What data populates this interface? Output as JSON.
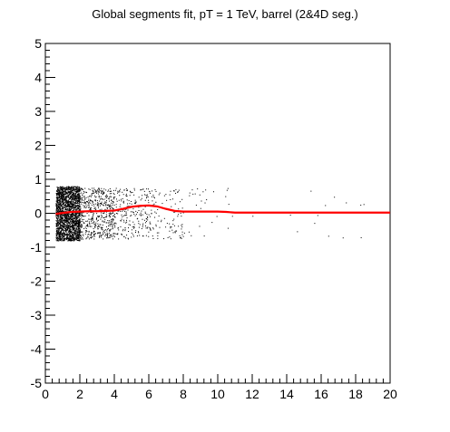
{
  "chart_data": {
    "type": "scatter",
    "title": "Global segments fit, pT = 1 TeV, barrel (2&4D seg.)",
    "xlabel": "",
    "ylabel": "",
    "xlim": [
      0,
      20
    ],
    "ylim": [
      -5,
      5
    ],
    "x_ticks": [
      0,
      2,
      4,
      6,
      8,
      10,
      12,
      14,
      16,
      18,
      20
    ],
    "y_ticks": [
      -5,
      -4,
      -3,
      -2,
      -1,
      0,
      1,
      2,
      3,
      4,
      5
    ],
    "grid": false,
    "legend": "none",
    "series": [
      {
        "kind": "scatter",
        "color": "#000000",
        "description_points": "dense band of black points between x≈0.6 and x≈2.0 spanning y≈-0.8 to 0.8, thinning out to sparse points up to x≈19",
        "density_bands": [
          {
            "x": [
              0.6,
              2.0
            ],
            "y": [
              -0.8,
              0.8
            ],
            "count": 2200
          },
          {
            "x": [
              2.0,
              4.0
            ],
            "y": [
              -0.75,
              0.75
            ],
            "count": 520
          },
          {
            "x": [
              4.0,
              6.0
            ],
            "y": [
              -0.75,
              0.75
            ],
            "count": 220
          },
          {
            "x": [
              6.0,
              8.0
            ],
            "y": [
              -0.75,
              0.75
            ],
            "count": 110
          },
          {
            "x": [
              8.0,
              11.0
            ],
            "y": [
              -0.75,
              0.75
            ],
            "count": 28
          },
          {
            "x": [
              11.0,
              19.0
            ],
            "y": [
              -0.75,
              0.75
            ],
            "count": 14
          }
        ]
      },
      {
        "kind": "line",
        "color": "#ff0000",
        "x": [
          0.6,
          1.0,
          1.5,
          2.0,
          2.5,
          3.0,
          3.5,
          4.0,
          4.5,
          5.0,
          5.5,
          6.0,
          6.5,
          7.0,
          7.5,
          8.0,
          9.0,
          10.0,
          10.5,
          11.0,
          12.0,
          14.0,
          16.0,
          18.0,
          20.0
        ],
        "y": [
          -0.02,
          0.01,
          0.04,
          0.05,
          0.06,
          0.06,
          0.07,
          0.08,
          0.13,
          0.19,
          0.22,
          0.23,
          0.2,
          0.13,
          0.07,
          0.05,
          0.05,
          0.05,
          0.04,
          0.02,
          0.02,
          0.02,
          0.02,
          0.02,
          0.02
        ]
      }
    ]
  }
}
